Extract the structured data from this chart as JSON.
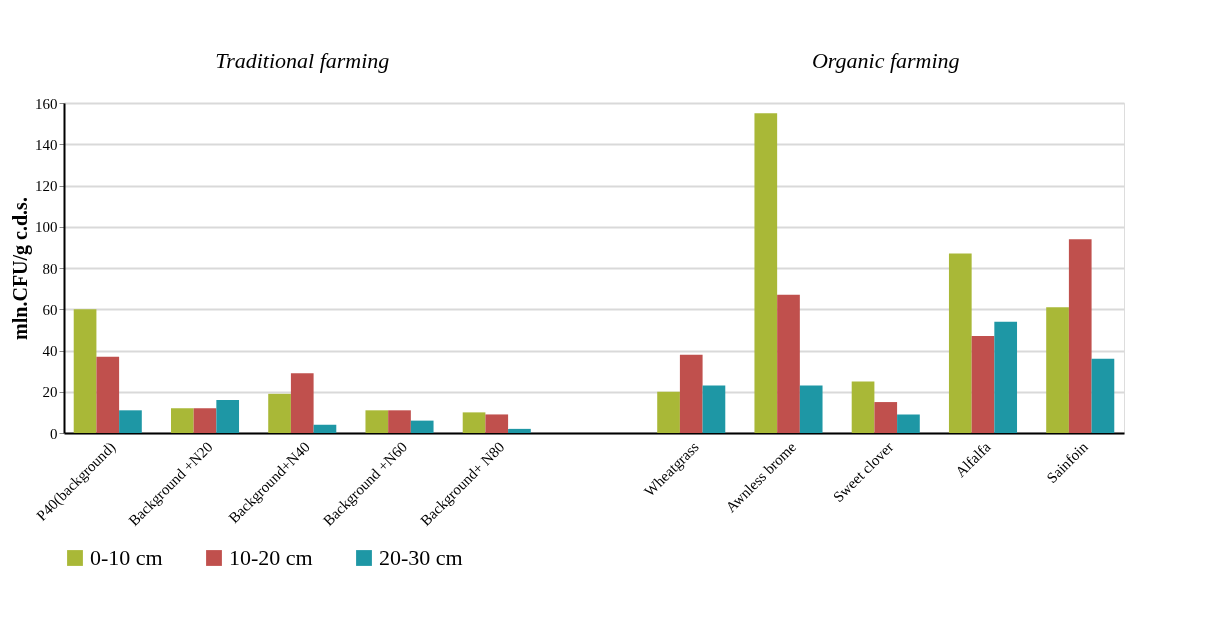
{
  "chart_data": {
    "type": "bar",
    "annotations": [
      "Traditional farming",
      "Organic farming"
    ],
    "ylabel": "mln.CFU/g c.d.s.",
    "categories": [
      "P40(background)",
      "Background +N20",
      "Background+N40",
      "Background +N60",
      "Background+ N80",
      null,
      "Wheatgrass",
      "Awnless brome",
      "Sweet clover",
      "Alfalfa",
      "Sainfoin"
    ],
    "series": [
      {
        "name": "0-10 cm",
        "color": "#a9b837",
        "values": [
          60,
          12,
          19,
          11,
          10,
          null,
          20,
          155,
          25,
          87,
          61
        ]
      },
      {
        "name": "10-20 cm",
        "color": "#c0504d",
        "values": [
          37,
          12,
          29,
          11,
          9,
          null,
          38,
          67,
          15,
          47,
          94
        ]
      },
      {
        "name": "20-30 cm",
        "color": "#1e97a5",
        "values": [
          11,
          16,
          4,
          6,
          2,
          null,
          23,
          23,
          9,
          54,
          36
        ]
      }
    ],
    "ylim": [
      0,
      160
    ],
    "yticks": [
      0,
      20,
      40,
      60,
      80,
      100,
      120,
      140,
      160
    ],
    "grid": "y",
    "legend": "bottom"
  }
}
